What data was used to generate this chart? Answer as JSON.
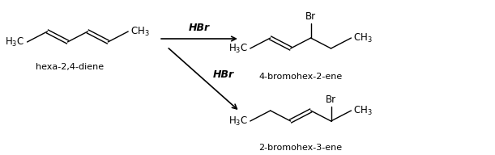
{
  "bg_color": "#ffffff",
  "fig_width": 6.11,
  "fig_height": 1.92,
  "dpi": 100,
  "reactant_label": "hexa-2,4-diene",
  "product1_label": "4-bromohex-2-ene",
  "product2_label": "2-bromohex-3-ene",
  "hbr_label": "HBr",
  "line_color": "#000000",
  "line_width": 1.0,
  "font_size_chem": 8.5,
  "font_size_label": 8.0,
  "font_size_hbr": 9.0
}
